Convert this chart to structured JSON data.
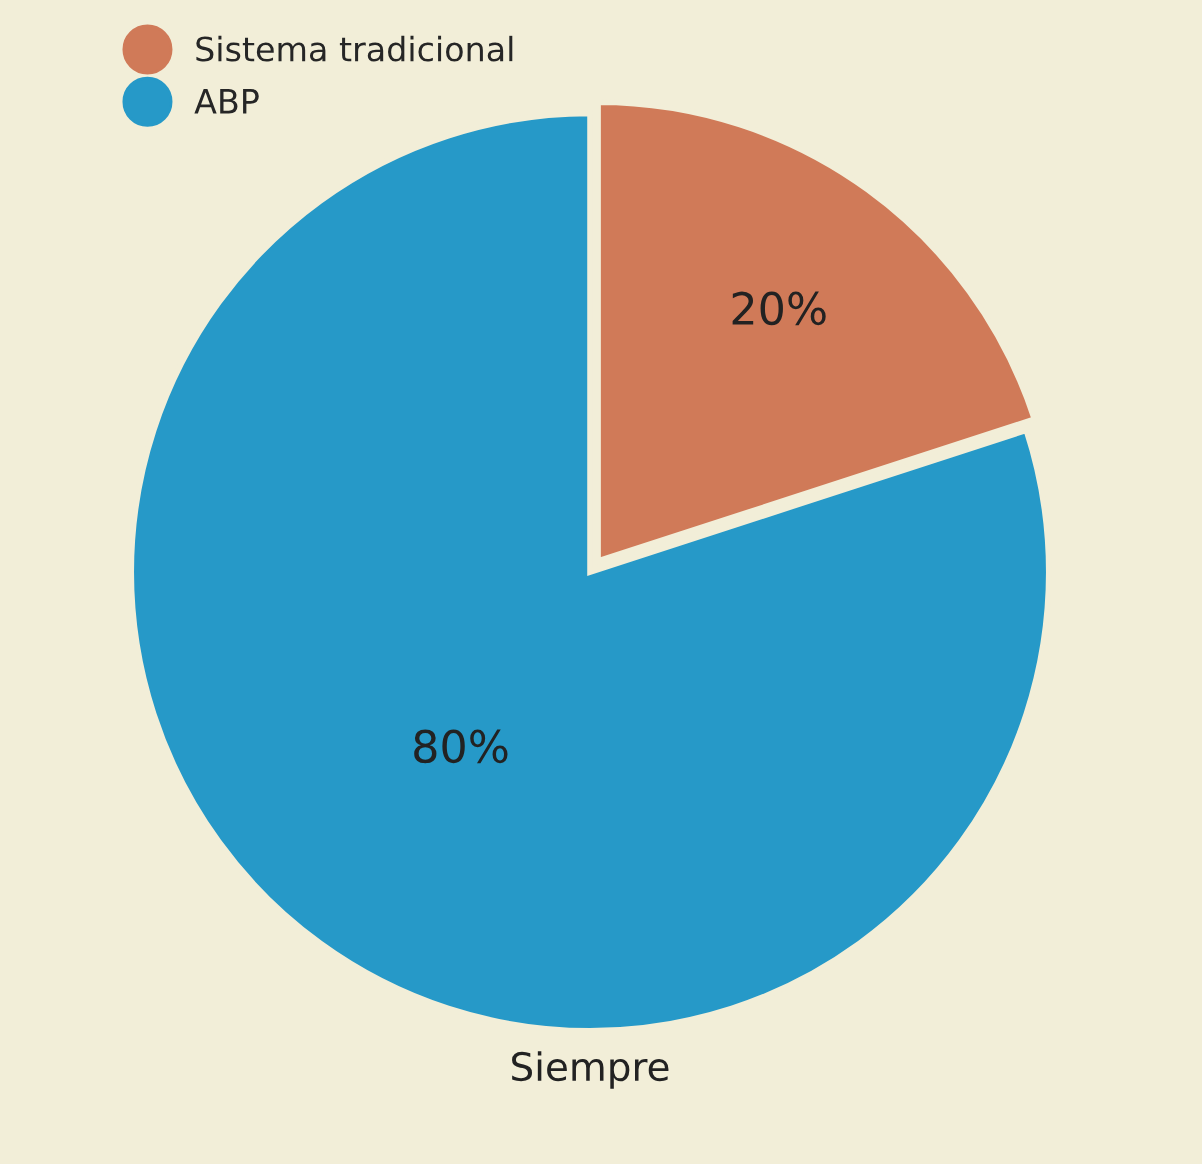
{
  "chart_data": {
    "type": "pie",
    "categories": [
      "Sistema tradicional",
      "ABP"
    ],
    "values": [
      20,
      80
    ],
    "value_labels": [
      "20%",
      "80%"
    ],
    "colors": [
      "#d07a58",
      "#2699c8"
    ],
    "xlabel": "Siempre",
    "legend": "top left"
  }
}
